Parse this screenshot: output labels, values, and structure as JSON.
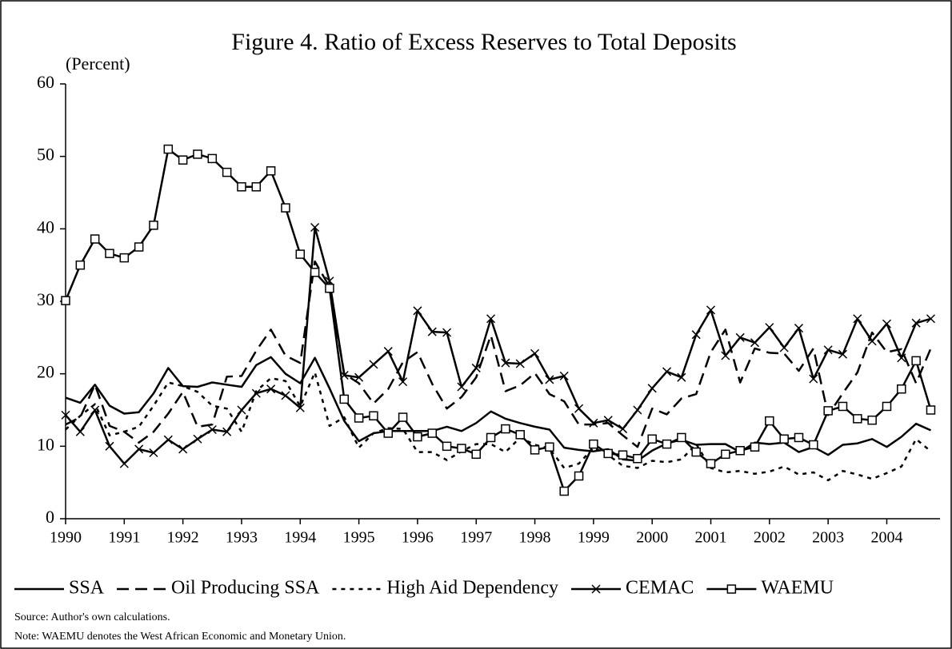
{
  "chart_data": {
    "type": "line",
    "title": "Figure 4. Ratio of Excess Reserves to Total Deposits",
    "y_label": "(Percent)",
    "categories": [
      "1990",
      null,
      null,
      null,
      "1991",
      null,
      null,
      null,
      "1992",
      null,
      null,
      null,
      "1993",
      null,
      null,
      null,
      "1994",
      null,
      null,
      null,
      "1995",
      null,
      null,
      null,
      "1996",
      null,
      null,
      null,
      "1997",
      null,
      null,
      null,
      "1998",
      null,
      null,
      null,
      "1999",
      null,
      null,
      null,
      "2000",
      null,
      null,
      null,
      "2001",
      null,
      null,
      null,
      "2002",
      null,
      null,
      null,
      "2003",
      null,
      null,
      null,
      "2004",
      null,
      null,
      null
    ],
    "series": [
      {
        "name": "SSA",
        "color": "#000000",
        "dash": "solid",
        "marker": null,
        "values": [
          16.7,
          16,
          18.5,
          15.6,
          14.5,
          14.7,
          17.3,
          20.8,
          18.3,
          18.2,
          18.8,
          18.5,
          18.2,
          21.2,
          22.3,
          20,
          18.7,
          22.2,
          18,
          13.5,
          10.7,
          11.8,
          12.1,
          12.1,
          12.1,
          12.1,
          12.7,
          12.1,
          13.2,
          14.8,
          13.8,
          13.2,
          12.7,
          12.3,
          9.8,
          9.5,
          9.3,
          9.6,
          8.2,
          8,
          9.4,
          10.4,
          10.9,
          10.2,
          10.3,
          10.3,
          9.2,
          10.5,
          10.3,
          10.5,
          9.2,
          9.9,
          8.8,
          10.2,
          10.4,
          11,
          9.9,
          11.3,
          13.1,
          12.2
        ]
      },
      {
        "name": "Oil Producing SSA",
        "color": "#000000",
        "dash": "dash",
        "marker": null,
        "values": [
          13,
          14,
          18.5,
          12.8,
          12,
          10.5,
          12,
          14.5,
          17.5,
          12.7,
          13,
          19.6,
          19.7,
          23.2,
          26.1,
          22.5,
          21.5,
          35.5,
          32,
          20,
          18.7,
          15.9,
          17.9,
          21.6,
          23,
          18.6,
          15.2,
          16.8,
          19.5,
          25.3,
          17.6,
          18.4,
          20.1,
          17.2,
          16.2,
          13,
          13,
          13.2,
          11.5,
          9.9,
          15.2,
          14.4,
          16.6,
          17.2,
          23,
          26.1,
          18.8,
          23.5,
          22.9,
          22.8,
          20.4,
          23.5,
          14.3,
          17.3,
          20.2,
          25.7,
          23,
          23.4,
          18.7,
          23.5
        ]
      },
      {
        "name": "High Aid Dependency",
        "color": "#000000",
        "dash": "dot",
        "marker": null,
        "values": [
          12.3,
          14.2,
          15.8,
          11.5,
          12,
          12.7,
          15.6,
          18.8,
          18.3,
          17.5,
          15.6,
          15.2,
          12,
          17.6,
          19.4,
          19,
          15.5,
          20.2,
          12.8,
          14,
          9.8,
          11.8,
          12.5,
          12.4,
          9.2,
          9.2,
          8.1,
          9.3,
          10.3,
          10.3,
          9.2,
          11.2,
          10.2,
          9.7,
          7,
          7.6,
          9.8,
          8.8,
          7.3,
          7,
          8,
          7.8,
          8.2,
          10.3,
          7,
          6.4,
          6.6,
          6.2,
          6.5,
          7.2,
          6.1,
          6.4,
          5.3,
          6.6,
          6.1,
          5.5,
          6.3,
          7.2,
          11,
          9.3
        ]
      },
      {
        "name": "CEMAC",
        "color": "#000000",
        "dash": "solid",
        "marker": "x",
        "values": [
          14.3,
          12,
          15,
          10,
          7.6,
          9.6,
          9.1,
          10.9,
          9.6,
          11,
          12.3,
          12,
          15,
          17.3,
          17.9,
          17,
          15.3,
          40.2,
          32.8,
          19.8,
          19.5,
          21.3,
          23.1,
          18.9,
          28.7,
          25.8,
          25.7,
          18.2,
          20.8,
          27.6,
          21.5,
          21.4,
          22.8,
          19.2,
          19.7,
          15.2,
          13.2,
          13.6,
          12.4,
          15,
          18,
          20.3,
          19.5,
          25.4,
          28.8,
          22.5,
          25,
          24.3,
          26.4,
          23.6,
          26.3,
          19.3,
          23.3,
          22.7,
          27.6,
          24.5,
          26.9,
          22.2,
          27,
          27.6
        ]
      },
      {
        "name": "WAEMU",
        "color": "#000000",
        "dash": "solid",
        "marker": "square",
        "values": [
          30.1,
          35,
          38.6,
          36.6,
          36,
          37.5,
          40.5,
          51,
          49.5,
          50.3,
          49.7,
          47.8,
          45.8,
          45.8,
          48,
          42.9,
          36.5,
          34,
          31.8,
          16.5,
          13.9,
          14.2,
          11.8,
          14,
          11.3,
          11.8,
          10,
          9.7,
          8.9,
          11.2,
          12.4,
          11.6,
          9.5,
          9.9,
          3.8,
          5.9,
          10.3,
          9,
          8.8,
          8.3,
          11,
          10.3,
          11.2,
          9.2,
          7.6,
          8.9,
          9.4,
          9.9,
          13.5,
          11,
          11.2,
          10.2,
          14.9,
          15.5,
          13.8,
          13.6,
          15.5,
          17.9,
          21.8,
          15
        ]
      }
    ],
    "ylim": [
      0,
      60
    ],
    "yticks": [
      0,
      10,
      20,
      30,
      40,
      50,
      60
    ],
    "grid": false,
    "legend": "bottom",
    "notes": [
      "Source: Author's own calculations.",
      "Note: WAEMU denotes the West African Economic and Monetary Union."
    ]
  }
}
